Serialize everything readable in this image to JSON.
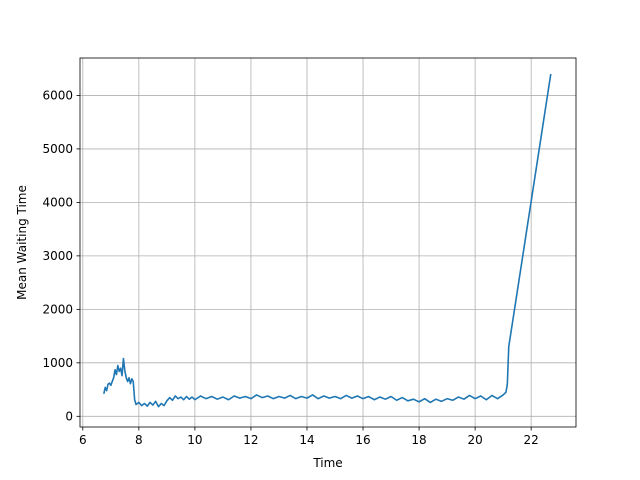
{
  "chart_data": {
    "type": "line",
    "title": "",
    "xlabel": "Time",
    "ylabel": "Mean Waiting Time",
    "xlim": [
      5.9,
      23.6
    ],
    "ylim": [
      -200,
      6700
    ],
    "xticks": [
      6,
      8,
      10,
      12,
      14,
      16,
      18,
      20,
      22
    ],
    "yticks": [
      0,
      1000,
      2000,
      3000,
      4000,
      5000,
      6000
    ],
    "grid": true,
    "series": [
      {
        "color": "#1f77b4",
        "points": [
          [
            6.75,
            420
          ],
          [
            6.8,
            540
          ],
          [
            6.85,
            480
          ],
          [
            6.9,
            600
          ],
          [
            6.95,
            620
          ],
          [
            7.0,
            580
          ],
          [
            7.05,
            650
          ],
          [
            7.1,
            720
          ],
          [
            7.15,
            870
          ],
          [
            7.2,
            780
          ],
          [
            7.25,
            950
          ],
          [
            7.3,
            840
          ],
          [
            7.35,
            900
          ],
          [
            7.4,
            760
          ],
          [
            7.45,
            1080
          ],
          [
            7.5,
            850
          ],
          [
            7.55,
            720
          ],
          [
            7.6,
            650
          ],
          [
            7.65,
            720
          ],
          [
            7.7,
            610
          ],
          [
            7.75,
            700
          ],
          [
            7.8,
            650
          ],
          [
            7.85,
            310
          ],
          [
            7.9,
            220
          ],
          [
            8.0,
            260
          ],
          [
            8.1,
            200
          ],
          [
            8.2,
            240
          ],
          [
            8.3,
            190
          ],
          [
            8.4,
            260
          ],
          [
            8.5,
            210
          ],
          [
            8.6,
            280
          ],
          [
            8.7,
            180
          ],
          [
            8.8,
            240
          ],
          [
            8.9,
            200
          ],
          [
            9.0,
            290
          ],
          [
            9.1,
            350
          ],
          [
            9.2,
            300
          ],
          [
            9.3,
            380
          ],
          [
            9.4,
            330
          ],
          [
            9.5,
            360
          ],
          [
            9.6,
            310
          ],
          [
            9.7,
            370
          ],
          [
            9.8,
            320
          ],
          [
            9.9,
            360
          ],
          [
            10.0,
            310
          ],
          [
            10.2,
            380
          ],
          [
            10.4,
            330
          ],
          [
            10.6,
            370
          ],
          [
            10.8,
            320
          ],
          [
            11.0,
            360
          ],
          [
            11.2,
            310
          ],
          [
            11.4,
            380
          ],
          [
            11.6,
            340
          ],
          [
            11.8,
            370
          ],
          [
            12.0,
            330
          ],
          [
            12.2,
            400
          ],
          [
            12.4,
            350
          ],
          [
            12.6,
            380
          ],
          [
            12.8,
            330
          ],
          [
            13.0,
            370
          ],
          [
            13.2,
            340
          ],
          [
            13.4,
            390
          ],
          [
            13.6,
            330
          ],
          [
            13.8,
            370
          ],
          [
            14.0,
            340
          ],
          [
            14.2,
            400
          ],
          [
            14.4,
            330
          ],
          [
            14.6,
            380
          ],
          [
            14.8,
            340
          ],
          [
            15.0,
            370
          ],
          [
            15.2,
            330
          ],
          [
            15.4,
            390
          ],
          [
            15.6,
            340
          ],
          [
            15.8,
            380
          ],
          [
            16.0,
            330
          ],
          [
            16.2,
            370
          ],
          [
            16.4,
            310
          ],
          [
            16.6,
            360
          ],
          [
            16.8,
            320
          ],
          [
            17.0,
            370
          ],
          [
            17.2,
            300
          ],
          [
            17.4,
            350
          ],
          [
            17.6,
            290
          ],
          [
            17.8,
            320
          ],
          [
            18.0,
            270
          ],
          [
            18.2,
            330
          ],
          [
            18.4,
            260
          ],
          [
            18.6,
            320
          ],
          [
            18.8,
            280
          ],
          [
            19.0,
            330
          ],
          [
            19.2,
            300
          ],
          [
            19.4,
            360
          ],
          [
            19.6,
            320
          ],
          [
            19.8,
            390
          ],
          [
            20.0,
            330
          ],
          [
            20.2,
            380
          ],
          [
            20.4,
            310
          ],
          [
            20.6,
            390
          ],
          [
            20.8,
            330
          ],
          [
            21.0,
            400
          ],
          [
            21.1,
            450
          ],
          [
            21.15,
            600
          ],
          [
            21.2,
            1300
          ],
          [
            22.7,
            6400
          ]
        ]
      }
    ]
  }
}
